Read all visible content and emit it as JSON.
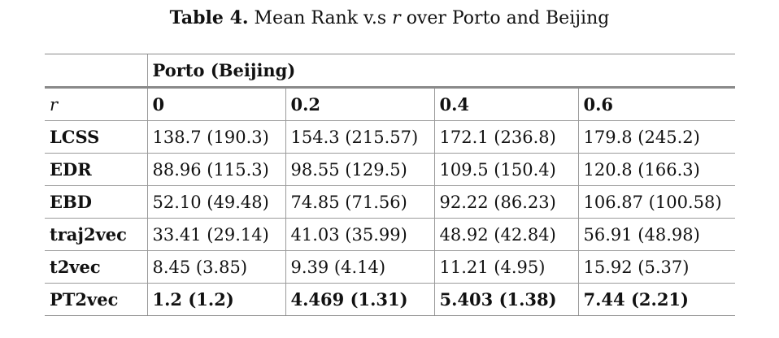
{
  "caption": {
    "label": "Table 4.",
    "text_before": "Mean Rank v.s",
    "variable": "r",
    "text_after": "over Porto and Beijing"
  },
  "table": {
    "group_header": "Porto (Beijing)",
    "param_label": "r",
    "columns": [
      "0",
      "0.2",
      "0.4",
      "0.6"
    ],
    "rows": [
      {
        "method": "LCSS",
        "values": [
          "138.7 (190.3)",
          "154.3 (215.57)",
          "172.1 (236.8)",
          "179.8 (245.2)"
        ]
      },
      {
        "method": "EDR",
        "values": [
          "88.96 (115.3)",
          "98.55 (129.5)",
          "109.5 (150.4)",
          "120.8 (166.3)"
        ]
      },
      {
        "method": "EBD",
        "values": [
          "52.10 (49.48)",
          "74.85 (71.56)",
          "92.22 (86.23)",
          "106.87 (100.58)"
        ]
      },
      {
        "method": "traj2vec",
        "values": [
          "33.41 (29.14)",
          "41.03 (35.99)",
          "48.92 (42.84)",
          "56.91 (48.98)"
        ]
      },
      {
        "method": "t2vec",
        "values": [
          "8.45 (3.85)",
          "9.39 (4.14)",
          "11.21 (4.95)",
          "15.92 (5.37)"
        ]
      },
      {
        "method": "PT2vec",
        "values": [
          "1.2 (1.2)",
          "4.469 (1.31)",
          "5.403 (1.38)",
          "7.44 (2.21)"
        ]
      }
    ]
  }
}
